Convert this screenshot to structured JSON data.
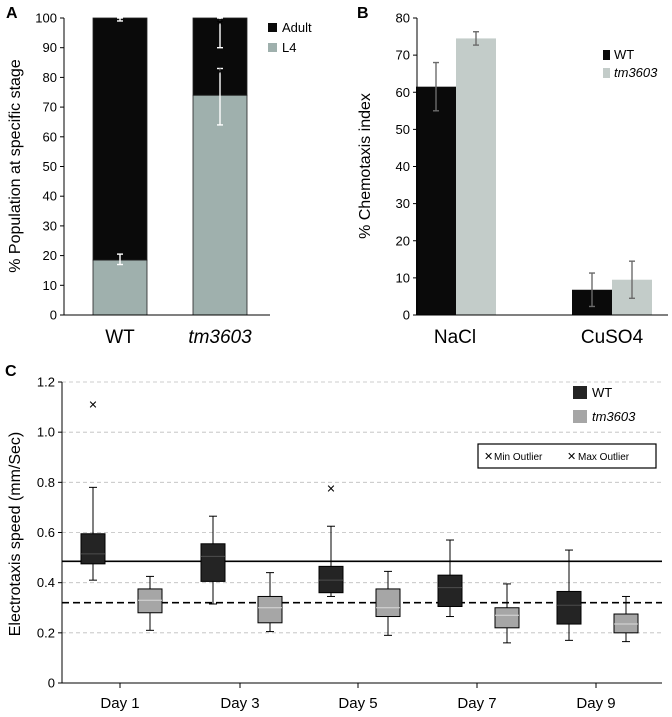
{
  "colors": {
    "adult": "#0a0a0a",
    "l4": "#9fb0ad",
    "wt_b": "#0a0a0a",
    "mut_b": "#c3ccc9",
    "wt_box": "#242424",
    "mut_box": "#a6a6a6",
    "grid": "#bdbdbd",
    "outlier": "#7a7a7a"
  },
  "chart_data": [
    {
      "panel": "A",
      "type": "bar",
      "stacked": true,
      "ylabel": "% Population at specific stage",
      "ylim": [
        0,
        100
      ],
      "yticks": [
        "0",
        "10",
        "20",
        "30",
        "40",
        "50",
        "60",
        "70",
        "80",
        "90",
        "100"
      ],
      "categories": [
        "WT",
        "tm3603"
      ],
      "series": [
        {
          "name": "L4",
          "values": [
            18.5,
            74
          ],
          "errors": [
            [
              17,
              20.5
            ],
            [
              64,
              83
            ]
          ]
        },
        {
          "name": "Adult",
          "values": [
            81.5,
            26
          ],
          "errors": [
            [
              99,
              100
            ],
            [
              90,
              100
            ]
          ]
        }
      ],
      "legend": [
        "Adult",
        "L4"
      ],
      "annotations": [
        "*",
        "*"
      ]
    },
    {
      "panel": "B",
      "type": "bar",
      "ylabel": "% Chemotaxis index",
      "ylim": [
        0,
        80
      ],
      "yticks": [
        "0",
        "10",
        "20",
        "30",
        "40",
        "50",
        "60",
        "70",
        "80"
      ],
      "categories": [
        "NaCl",
        "CuSO4"
      ],
      "series": [
        {
          "name": "WT",
          "values": [
            61.5,
            6.8
          ],
          "errors": [
            6.5,
            4.5
          ]
        },
        {
          "name": "tm3603",
          "values": [
            74.5,
            9.5
          ],
          "errors": [
            1.8,
            5
          ]
        }
      ],
      "legend": [
        "WT",
        "tm3603"
      ]
    },
    {
      "panel": "C",
      "type": "box",
      "ylabel": "Electrotaxis speed (mm/Sec)",
      "ylim": [
        0,
        1.2
      ],
      "yticks": [
        "0",
        "0.2",
        "0.4",
        "0.6",
        "0.8",
        "1.0",
        "1.2"
      ],
      "grid": true,
      "categories": [
        "Day 1",
        "Day 3",
        "Day 5",
        "Day 7",
        "Day 9"
      ],
      "series": [
        {
          "name": "WT",
          "boxes": [
            {
              "min": 0.41,
              "q1": 0.475,
              "median": 0.515,
              "q3": 0.595,
              "max": 0.78,
              "outliers": [
                1.11
              ]
            },
            {
              "min": 0.315,
              "q1": 0.405,
              "median": 0.505,
              "q3": 0.555,
              "max": 0.665,
              "outliers": []
            },
            {
              "min": 0.345,
              "q1": 0.36,
              "median": 0.41,
              "q3": 0.465,
              "max": 0.625,
              "outliers": [
                0.775
              ]
            },
            {
              "min": 0.265,
              "q1": 0.305,
              "median": 0.38,
              "q3": 0.43,
              "max": 0.57,
              "outliers": []
            },
            {
              "min": 0.17,
              "q1": 0.235,
              "median": 0.31,
              "q3": 0.365,
              "max": 0.53,
              "outliers": []
            }
          ],
          "mean_line": 0.485
        },
        {
          "name": "tm3603",
          "boxes": [
            {
              "min": 0.21,
              "q1": 0.28,
              "median": 0.33,
              "q3": 0.375,
              "max": 0.425,
              "outliers": []
            },
            {
              "min": 0.205,
              "q1": 0.24,
              "median": 0.3,
              "q3": 0.345,
              "max": 0.44,
              "outliers": []
            },
            {
              "min": 0.19,
              "q1": 0.265,
              "median": 0.3,
              "q3": 0.375,
              "max": 0.445,
              "outliers": []
            },
            {
              "min": 0.16,
              "q1": 0.22,
              "median": 0.27,
              "q3": 0.3,
              "max": 0.395,
              "outliers": []
            },
            {
              "min": 0.165,
              "q1": 0.2,
              "median": 0.235,
              "q3": 0.275,
              "max": 0.345,
              "outliers": []
            }
          ],
          "mean_line": 0.32
        }
      ],
      "legend": [
        "WT",
        "tm3603"
      ],
      "outlier_legend": [
        "Min Outlier",
        "Max Outlier"
      ]
    }
  ]
}
